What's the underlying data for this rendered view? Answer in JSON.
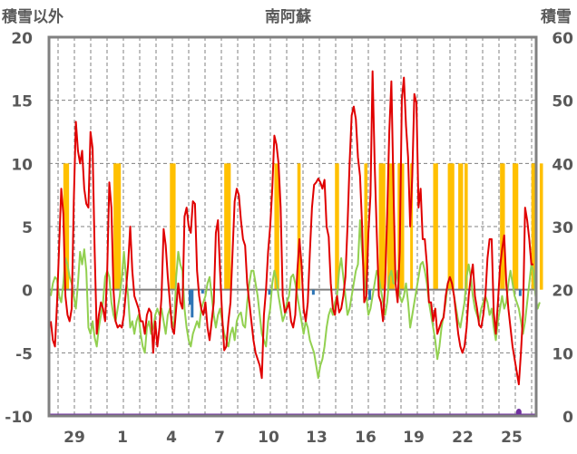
{
  "chart_data": {
    "type": "line",
    "title": "南阿蘇",
    "ylabel_left": "積雪以外",
    "ylabel_right": "積雪",
    "ylim_left": [
      -10,
      20
    ],
    "ylim_right": [
      0,
      60
    ],
    "yticks_left": [
      "20",
      "15",
      "10",
      "5",
      "0",
      "-5",
      "-10"
    ],
    "yticks_right": [
      "60",
      "50",
      "40",
      "30",
      "20",
      "10",
      "0"
    ],
    "xtick_labels": [
      "29",
      "1",
      "4",
      "7",
      "10",
      "13",
      "16",
      "19",
      "22",
      "25"
    ],
    "grid": true,
    "colors": {
      "temperature_line": "#e00000",
      "green_line": "#92d050",
      "sunshine_bars": "#ffc000",
      "precip_bars": "#2e75b6",
      "snow_line": "#7030a0",
      "frame": "#808080",
      "grid": "#808080"
    },
    "series": [
      {
        "color": "#e00000",
        "values": [
          -2.5,
          -4,
          -4.5,
          -1,
          3.5,
          8,
          6,
          -0.5,
          -2,
          -2.5,
          -1.5,
          7,
          13.3,
          11,
          10,
          11,
          8,
          6.8,
          6.5,
          12.5,
          11.2,
          3,
          -3.5,
          -2,
          -1,
          -1.5,
          -2.5,
          1.5,
          8.5,
          6.5,
          0,
          -2.5,
          -3,
          -2.8,
          -3,
          -2,
          0,
          2,
          5,
          1.5,
          -0.5,
          -1,
          -1.5,
          -2.5,
          -2.5,
          -3.5,
          -2,
          -1.5,
          -1.8,
          -5,
          -2.5,
          -4.5,
          -3,
          -0.5,
          4.8,
          3.5,
          1,
          -1,
          -3,
          -3.5,
          -1.5,
          0.5,
          -1,
          -1.5,
          5.8,
          6.5,
          5,
          4.5,
          7,
          6.8,
          1.5,
          -0.5,
          -1.5,
          -2,
          -1,
          -3,
          -4,
          -2.5,
          -1,
          4.5,
          5.5,
          1.5,
          -2,
          -4.8,
          -4.5,
          -2.5,
          -1,
          3,
          7,
          8,
          7.5,
          5.5,
          4,
          3.5,
          0.5,
          -1,
          -2.5,
          -4,
          -5,
          -5.5,
          -6,
          -7,
          -2,
          0,
          3,
          5,
          8,
          12.2,
          11.5,
          10,
          6.5,
          -0.5,
          -1.8,
          -1.5,
          -1,
          -2.5,
          -3,
          -2,
          1.5,
          4,
          2,
          -1.5,
          -2.5,
          -1,
          3,
          6.5,
          8.3,
          8.5,
          8.8,
          8.5,
          8,
          8.7,
          5,
          4.2,
          0.5,
          -1.5,
          -2,
          -0.5,
          -1.8,
          -1.5,
          -0.5,
          1,
          5,
          10,
          13.8,
          14.5,
          13.5,
          10.5,
          9,
          5,
          -1,
          -0.5,
          4.5,
          7.5,
          17.3,
          10,
          4.5,
          -0.5,
          -1,
          -2.5,
          0.5,
          6,
          12.5,
          16.5,
          8,
          0.5,
          -1,
          3,
          15,
          16.8,
          13,
          10.5,
          5,
          9,
          15.5,
          14.8,
          6.5,
          8,
          4,
          4,
          2,
          -1,
          -1,
          -2.5,
          -1.5,
          -3.5,
          -3,
          -2.5,
          -2.2,
          -0.5,
          0.5,
          1,
          0.5,
          -0.5,
          -2,
          -3.5,
          -4.5,
          -5,
          -4.5,
          -3,
          -0.5,
          1,
          2,
          -0.5,
          -1.5,
          -2.8,
          -3,
          -2,
          -0.5,
          2.5,
          4,
          4,
          -1.8,
          -3.5,
          -1,
          1.8,
          3.2,
          4.3,
          0.5,
          -1.5,
          -3,
          -4.5,
          -5.5,
          -6.5,
          -7.5,
          -5,
          -2,
          6.5,
          5.5,
          4,
          2,
          2
        ]
      },
      {
        "color": "#92d050",
        "values": [
          -0.5,
          0.5,
          1,
          0.8,
          -0.5,
          -1,
          0.5,
          2.5,
          2,
          1,
          0.5,
          -0.5,
          -1.5,
          0.5,
          3,
          2,
          3.2,
          1.5,
          -3,
          -3.5,
          -2.5,
          -3.8,
          -4.5,
          -3,
          -2,
          -1,
          1,
          1.5,
          1,
          -1,
          -2,
          -2.5,
          -1.5,
          -0.5,
          1,
          3,
          1,
          -0.5,
          -3,
          -2.5,
          -3.5,
          -2.5,
          -2,
          -3.5,
          -4.5,
          -5,
          -3,
          -2.5,
          -3.5,
          -3,
          -2,
          -1.5,
          -2,
          -1.5,
          -2.5,
          -3.5,
          -2,
          -1.5,
          -2.5,
          -3,
          1,
          3,
          2,
          1.5,
          -1.5,
          -3,
          -4,
          -4.5,
          -3.5,
          -3,
          -2.5,
          -3,
          -1.5,
          -1,
          -0.5,
          0.5,
          1,
          -0.5,
          -2,
          -3,
          -2,
          -1.5,
          -2.5,
          -3.5,
          -4,
          -4.5,
          -3.5,
          -3,
          -4,
          -2.5,
          -2,
          -1.8,
          -2.8,
          -3,
          -1,
          0.5,
          1.5,
          1.5,
          0.5,
          -0.5,
          -2,
          -3.5,
          -4,
          -4.5,
          -2.5,
          -1.5,
          0.5,
          1.5,
          0.8,
          -0.5,
          -1.5,
          -2.5,
          -2,
          -1,
          -0.5,
          1,
          1.2,
          0.5,
          -0.5,
          -1.5,
          -2.5,
          -3.5,
          -2.5,
          -3,
          -4,
          -4.5,
          -5,
          -6,
          -7,
          -6,
          -5.5,
          -4.5,
          -3,
          -2,
          -1.5,
          -2,
          -1,
          -0.5,
          1.5,
          2.5,
          1,
          -0.5,
          -2,
          -1.5,
          -0.5,
          0.5,
          1.5,
          2,
          5.5,
          3,
          1,
          -0.5,
          -2,
          -1.5,
          -0.5,
          0.5,
          1.5,
          1,
          0,
          -1,
          -2,
          -1,
          1,
          1.5,
          0.5,
          0.5,
          1.5,
          -0.5,
          -1,
          -0.5,
          0.5,
          -1,
          -3,
          -2,
          -1,
          0,
          1,
          2,
          2.2,
          1.5,
          0.5,
          -1,
          -2,
          -3,
          -4,
          -5.5,
          -4.5,
          -3,
          -2,
          -1,
          0.5,
          1,
          0.5,
          -0.5,
          -1.5,
          -2.5,
          -3,
          -2,
          -1,
          1,
          2,
          1,
          -0.5,
          -1.5,
          -2,
          -2.5,
          -1.5,
          -1,
          -0.5,
          -1,
          -2,
          -1.5,
          -3,
          -4,
          -2.5,
          -1.5,
          -0.5,
          -1.5,
          -1,
          0.5,
          1.5,
          0.5,
          -0.5,
          -1,
          -1.5,
          -2.5,
          -3.5,
          -2.5,
          -1,
          0.5,
          2,
          1.5,
          -0.5,
          -1.5,
          -1
        ]
      },
      {
        "color": "#7030a0",
        "values": [
          0
        ]
      }
    ],
    "sunshine_bars": [
      [
        6,
        0.7
      ],
      [
        30,
        0.9
      ],
      [
        57,
        0.7
      ],
      [
        83,
        0.8
      ],
      [
        107,
        0.6
      ],
      [
        118,
        0.4
      ],
      [
        136,
        0.5
      ],
      [
        150,
        0.4
      ],
      [
        157,
        0.8
      ],
      [
        161,
        0.9
      ],
      [
        166,
        0.8
      ],
      [
        172,
        0.3
      ],
      [
        183,
        0.6
      ],
      [
        190,
        0.8
      ],
      [
        195,
        0.6
      ],
      [
        198,
        0.4
      ],
      [
        215,
        0.6
      ],
      [
        221,
        0.7
      ],
      [
        230,
        0.5
      ],
      [
        234,
        0.4
      ]
    ],
    "precip_bars": [
      [
        66,
        -1.2
      ],
      [
        67,
        -2.2
      ],
      [
        72,
        -0.3
      ],
      [
        104,
        -0.4
      ],
      [
        125,
        -0.4
      ],
      [
        152,
        -0.8
      ],
      [
        224,
        -0.5
      ]
    ],
    "snow_marker": {
      "x": 224,
      "value": 0.6
    }
  }
}
